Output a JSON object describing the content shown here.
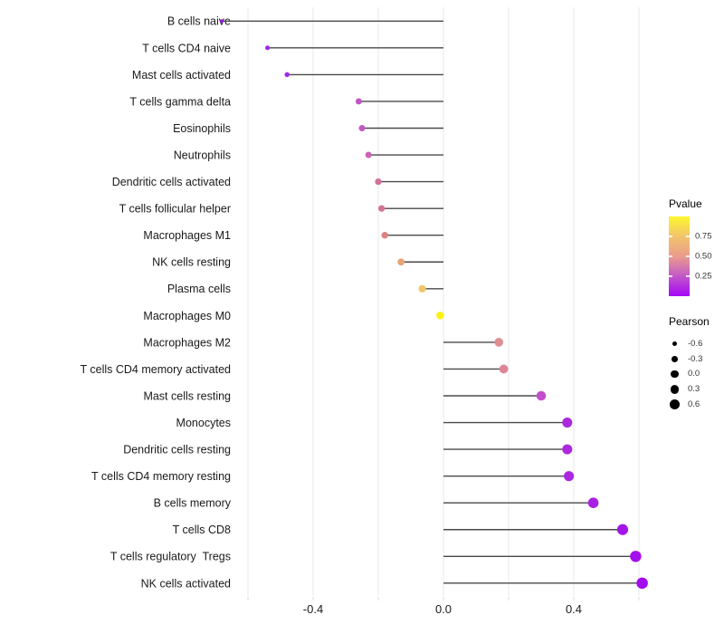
{
  "colors": {
    "background": "#ffffff",
    "gridline": "#ececec",
    "axis_tick": "#d9d9d9",
    "stem": "#4a4a4a",
    "axis_text": "#1a1a1a",
    "category_text": "#1a1a1a",
    "legend_dot": "#000000"
  },
  "legend_pvalue": {
    "title": "Pvalue",
    "gradient_stops": [
      "#A604F6",
      "#C158C9",
      "#EB9C8C",
      "#F2C46B",
      "#FDF72E"
    ],
    "tick_labels": [
      {
        "label": "0.75",
        "frac_from_top": 0.25
      },
      {
        "label": "0.50",
        "frac_from_top": 0.5
      },
      {
        "label": "0.25",
        "frac_from_top": 0.75
      }
    ]
  },
  "legend_pearson": {
    "title": "Pearson",
    "entries": [
      {
        "label": "-0.6",
        "radius": 2.6
      },
      {
        "label": "-0.3",
        "radius": 3.4
      },
      {
        "label": "0.0",
        "radius": 4.2
      },
      {
        "label": "0.3",
        "radius": 4.85
      },
      {
        "label": "0.6",
        "radius": 5.4
      }
    ]
  },
  "chart_data": {
    "type": "lollipop",
    "title": "",
    "xlabel": "",
    "ylabel": "",
    "legend_position": "right",
    "x_gridlines": [
      -0.6,
      -0.4,
      -0.2,
      0.0,
      0.2,
      0.4,
      0.6
    ],
    "x_tick_labels": [
      {
        "value": -0.4,
        "label": "-0.4"
      },
      {
        "value": 0.0,
        "label": "0.0"
      },
      {
        "value": 0.4,
        "label": "0.4"
      }
    ],
    "xlim": [
      -0.72,
      0.67
    ],
    "baseline_x": 0.0,
    "rows": [
      {
        "category": "B cells naive",
        "pearson": -0.68,
        "pvalue_approx": 0.03,
        "color": "#8F1BE1"
      },
      {
        "category": "T cells CD4 naive",
        "pearson": -0.54,
        "pvalue_approx": 0.06,
        "color": "#9D2BE1"
      },
      {
        "category": "Mast cells activated",
        "pearson": -0.48,
        "pvalue_approx": 0.07,
        "color": "#A02BE3"
      },
      {
        "category": "T cells gamma delta",
        "pearson": -0.26,
        "pvalue_approx": 0.24,
        "color": "#C253C6"
      },
      {
        "category": "Eosinophils",
        "pearson": -0.25,
        "pvalue_approx": 0.25,
        "color": "#C457C3"
      },
      {
        "category": "Neutrophils",
        "pearson": -0.23,
        "pvalue_approx": 0.29,
        "color": "#CC64B2"
      },
      {
        "category": "Dendritic cells activated",
        "pearson": -0.2,
        "pvalue_approx": 0.33,
        "color": "#D3709B"
      },
      {
        "category": "T cells follicular helper",
        "pearson": -0.19,
        "pvalue_approx": 0.34,
        "color": "#D57399"
      },
      {
        "category": "Macrophages M1",
        "pearson": -0.18,
        "pvalue_approx": 0.4,
        "color": "#DD8284"
      },
      {
        "category": "NK cells resting",
        "pearson": -0.13,
        "pvalue_approx": 0.55,
        "color": "#E9A272"
      },
      {
        "category": "Plasma cells",
        "pearson": -0.065,
        "pvalue_approx": 0.72,
        "color": "#EEC868"
      },
      {
        "category": "Macrophages M0",
        "pearson": -0.01,
        "pvalue_approx": 0.97,
        "color": "#F9F112"
      },
      {
        "category": "Macrophages M2",
        "pearson": 0.17,
        "pvalue_approx": 0.42,
        "color": "#E08D92"
      },
      {
        "category": "T cells CD4 memory activated",
        "pearson": 0.185,
        "pvalue_approx": 0.41,
        "color": "#DF8596"
      },
      {
        "category": "Mast cells resting",
        "pearson": 0.3,
        "pvalue_approx": 0.22,
        "color": "#C24FC9"
      },
      {
        "category": "Monocytes",
        "pearson": 0.38,
        "pvalue_approx": 0.1,
        "color": "#AC29DF"
      },
      {
        "category": "Dendritic cells resting",
        "pearson": 0.38,
        "pvalue_approx": 0.1,
        "color": "#AC29DF"
      },
      {
        "category": "T cells CD4 memory resting",
        "pearson": 0.385,
        "pvalue_approx": 0.09,
        "color": "#AB27E0"
      },
      {
        "category": "B cells memory",
        "pearson": 0.46,
        "pvalue_approx": 0.07,
        "color": "#A81FE4"
      },
      {
        "category": "T cells CD8",
        "pearson": 0.55,
        "pvalue_approx": 0.04,
        "color": "#A415E9"
      },
      {
        "category": "T cells regulatory  Tregs",
        "pearson": 0.59,
        "pvalue_approx": 0.02,
        "color": "#A30EEC"
      },
      {
        "category": "NK cells activated",
        "pearson": 0.61,
        "pvalue_approx": 0.02,
        "color": "#A30CEE"
      }
    ]
  }
}
